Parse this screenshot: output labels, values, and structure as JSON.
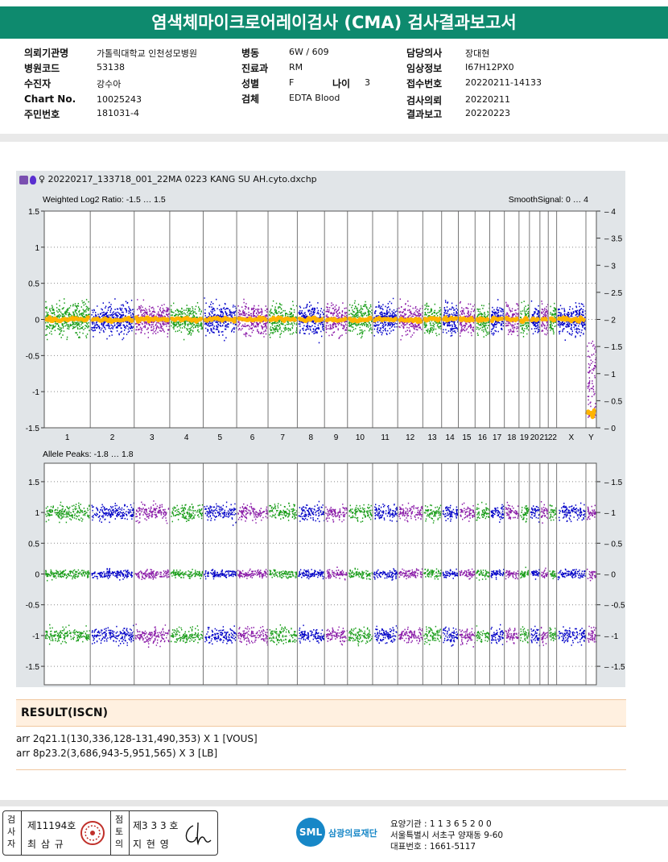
{
  "title": "염색체마이크로어레이검사 (CMA) 검사결과보고서",
  "info": {
    "institution_label": "의뢰기관명",
    "institution": "가톨릭대학교 인천성모병원",
    "code_label": "병원코드",
    "code": "53138",
    "patient_label": "수진자",
    "patient": "강수아",
    "chart_label": "Chart No.",
    "chart": "10025243",
    "id_label": "주민번호",
    "id": "181031-4",
    "ward_label": "병동",
    "ward": "6W / 609",
    "dept_label": "진료과",
    "dept": "RM",
    "sex_label": "성별",
    "sex": "F",
    "age_label": "나이",
    "age": "3",
    "specimen_label": "검체",
    "specimen": "EDTA Blood",
    "doctor_label": "담당의사",
    "doctor": "장대현",
    "clinical_label": "임상정보",
    "clinical": "I67H12PX0",
    "receipt_label": "접수번호",
    "receipt": "20220211-14133",
    "request_label": "검사의뢰",
    "request": "20220211",
    "report_label": "결과보고",
    "report": "20220223"
  },
  "chart_file": "♀ 20220217_133718_001_22MA 0223 KANG SU AH.cyto.dxchp",
  "chart_data": [
    {
      "type": "scatter",
      "title": "Weighted Log2 Ratio: -1.5 … 1.5",
      "right_title": "SmoothSignal: 0 … 4",
      "ylim": [
        -1.5,
        1.5
      ],
      "y_ticks": [
        "1.5",
        "1",
        "0.5",
        "0",
        "-0.5",
        "-1",
        "-1.5"
      ],
      "right_ylim": [
        0,
        4
      ],
      "right_ticks": [
        "4",
        "3.5",
        "3",
        "2.5",
        "2",
        "1.5",
        "1",
        "0.5",
        "0"
      ],
      "categories": [
        "1",
        "2",
        "3",
        "4",
        "5",
        "6",
        "7",
        "8",
        "9",
        "10",
        "11",
        "12",
        "13",
        "14",
        "15",
        "16",
        "17",
        "18",
        "19",
        "20",
        "21",
        "22",
        "X",
        "Y"
      ],
      "chromosome_colors": [
        "#1a9e1a",
        "#0000c8",
        "#8a1aa8"
      ]
    },
    {
      "type": "scatter",
      "title": "Allele Peaks: -1.8 … 1.8",
      "ylim": [
        -1.8,
        1.8
      ],
      "y_ticks": [
        "1.5",
        "1",
        "0.5",
        "0",
        "-0.5",
        "-1",
        "-1.5"
      ],
      "right_ticks": [
        "1.5",
        "1",
        "0.5",
        "0",
        "-0.5",
        "-1",
        "-1.5"
      ],
      "bands": [
        1,
        0,
        -1
      ]
    }
  ],
  "result_title": "RESULT(ISCN)",
  "results": [
    "arr 2q21.1(130,336,128-131,490,353) X 1 [VOUS]",
    "arr 8p23.2(3,686,943-5,951,565) X 3 [LB]"
  ],
  "footer": {
    "examiner_label": "검사자",
    "examiner_no": "제11194호",
    "examiner_name": "최 삼 규",
    "approver_label": "점토의",
    "approver_no": "제3 3 3 호",
    "approver_name": "지 현 영",
    "logo": "SML",
    "org_name": "삼광의료재단",
    "care_no": "요양기관 : 1 1 3 6 5 2 0 0",
    "address": "서울특별시 서초구 양재동 9-60",
    "phone": "대표번호 : 1661-5117"
  }
}
